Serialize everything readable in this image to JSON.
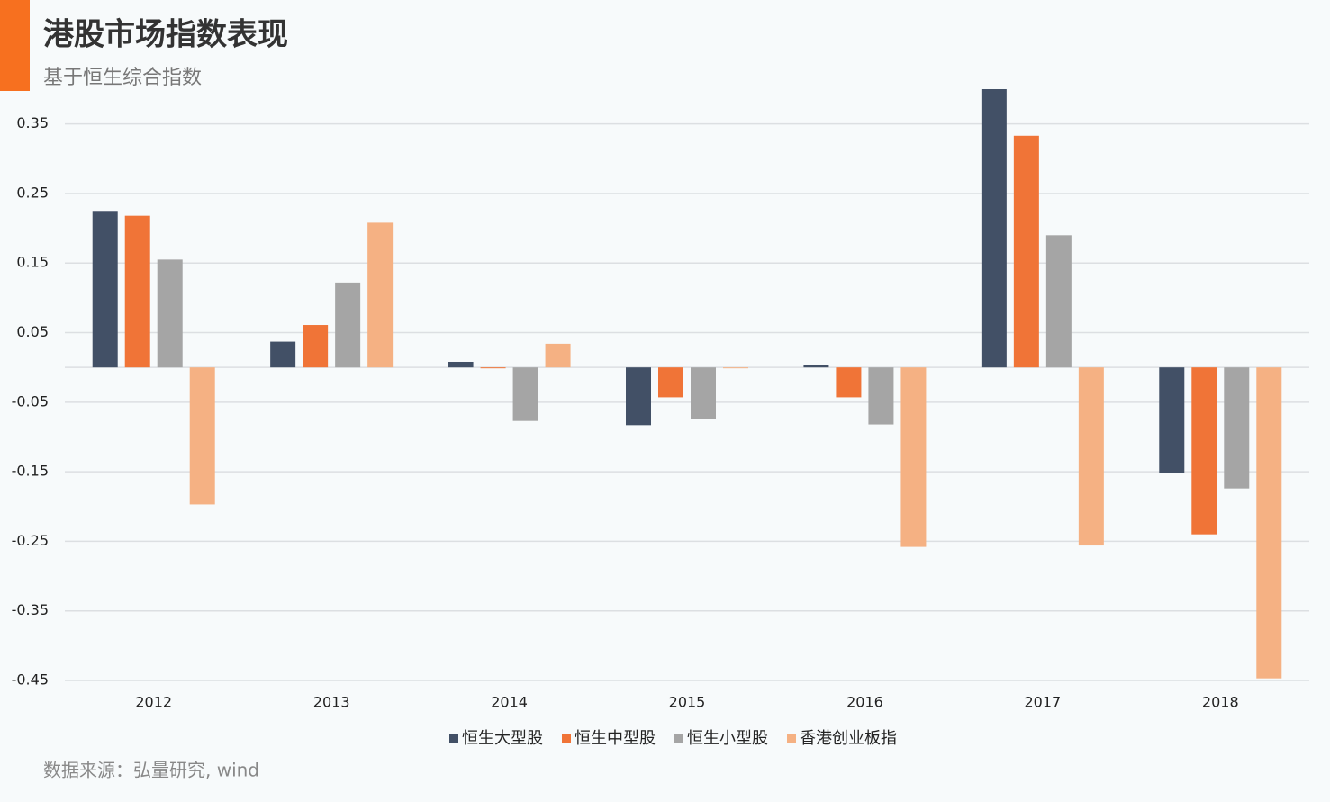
{
  "chart_data": {
    "type": "bar",
    "title": "港股市场指数表现",
    "subtitle": "基于恒生综合指数",
    "source": "数据来源：弘量研究, wind",
    "categories": [
      "2012",
      "2013",
      "2014",
      "2015",
      "2016",
      "2017",
      "2018"
    ],
    "series": [
      {
        "name": "恒生大型股",
        "color": "#425066",
        "values": [
          0.225,
          0.037,
          0.008,
          -0.083,
          0.003,
          0.4,
          -0.152
        ]
      },
      {
        "name": "恒生中型股",
        "color": "#f07437",
        "values": [
          0.218,
          0.061,
          -0.001,
          -0.043,
          -0.043,
          0.333,
          -0.24
        ]
      },
      {
        "name": "恒生小型股",
        "color": "#a5a5a5",
        "values": [
          0.155,
          0.122,
          -0.077,
          -0.074,
          -0.082,
          0.19,
          -0.174
        ]
      },
      {
        "name": "香港创业板指",
        "color": "#f5b183",
        "values": [
          -0.197,
          0.208,
          0.034,
          -0.001,
          -0.258,
          -0.256,
          -0.447
        ]
      }
    ],
    "ylim": [
      -0.45,
      0.4
    ],
    "yticks": [
      0.35,
      0.25,
      0.15,
      0.05,
      -0.05,
      -0.15,
      -0.25,
      -0.35,
      -0.45
    ],
    "grid": true,
    "legend": "bottom"
  }
}
